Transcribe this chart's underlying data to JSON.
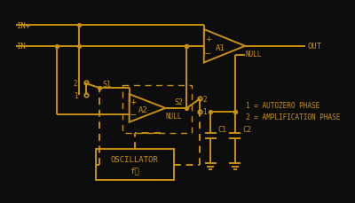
{
  "bg_color": "#0d0d0d",
  "line_color": "#C89010",
  "text_color": "#C89010",
  "figsize": [
    4.0,
    2.3
  ],
  "dpi": 100,
  "labels": {
    "in_plus": "IN+",
    "in_minus": "IN-",
    "out": "OUT",
    "a1": "A1",
    "a2": "A2",
    "null": "NULL",
    "s1": "S1",
    "s2": "S2",
    "c1": "C1",
    "c2": "C2",
    "osc_line1": "OSCILLATOR",
    "osc_line2": "fᴄ",
    "legend1": "1 = AUTOZERO PHASE",
    "legend2": "2 = AMPLIFICATION PHASE",
    "pos1": "1",
    "pos2": "2"
  }
}
